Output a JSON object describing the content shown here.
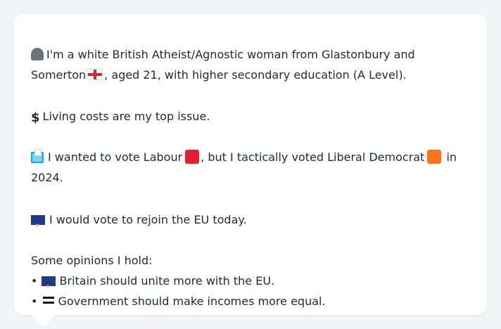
{
  "bio": {
    "line1": "I'm a white British Atheist/Agnostic woman from Glastonbury and",
    "line2_part1": "Somerton",
    "line2_part2": ", aged 21, with higher secondary education (A Level).",
    "icon_person": "person-icon",
    "icon_flag": "england-flag-icon"
  },
  "issue": {
    "icon": "dollar-sign-icon",
    "text": "Living costs are my top issue."
  },
  "vote": {
    "part1": "I wanted to vote Labour",
    "part2": ", but I tactically voted Liberal Democrat",
    "part3": "in",
    "line2": "2024.",
    "labour_color": "#e11d2e",
    "libdem_color": "#f97316"
  },
  "eu": {
    "text": "I would vote to rejoin the EU today."
  },
  "opinions": {
    "heading": "Some opinions I hold:",
    "items": [
      {
        "bullet": "•",
        "icon": "eu-flag-icon",
        "text": "Britain should unite more with the EU."
      },
      {
        "bullet": "•",
        "icon": "equals-icon",
        "text": "Government should make incomes more equal."
      }
    ]
  }
}
